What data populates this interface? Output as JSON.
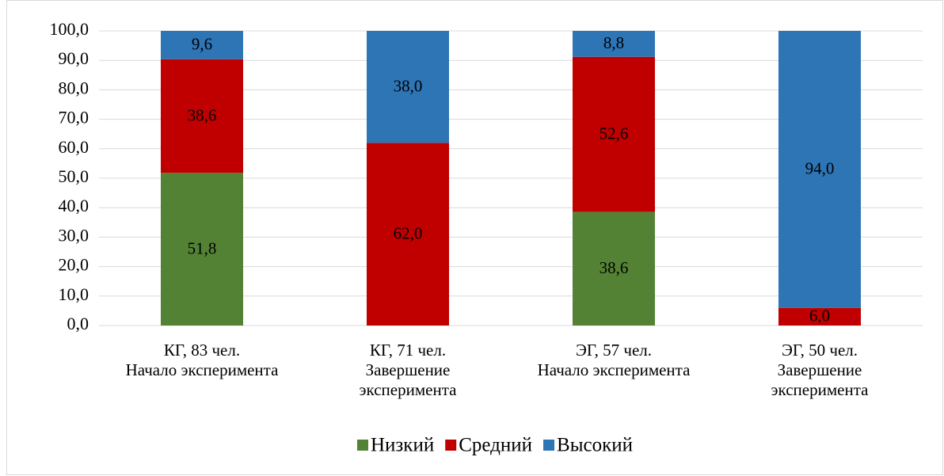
{
  "chart_data": {
    "type": "stacked_bar",
    "categories": [
      "КГ, 83 чел.\nНачало эксперимента",
      "КГ, 71 чел.\nЗавершение\nэксперимента",
      "ЭГ, 57 чел.\nНачало эксперимента",
      "ЭГ, 50 чел.\nЗавершение\nэксперимента"
    ],
    "series": [
      {
        "name": "Низкий",
        "color": "#548235",
        "values": [
          51.8,
          0,
          38.6,
          0
        ],
        "value_labels": [
          "51,8",
          null,
          "38,6",
          null
        ]
      },
      {
        "name": "Средний",
        "color": "#c00000",
        "values": [
          38.6,
          62.0,
          52.6,
          6.0
        ],
        "value_labels": [
          "38,6",
          "62,0",
          "52,6",
          "6,0"
        ]
      },
      {
        "name": "Высокий",
        "color": "#2e75b6",
        "values": [
          9.6,
          38.0,
          8.8,
          94.0
        ],
        "value_labels": [
          "9,6",
          "38,0",
          "8,8",
          "94,0"
        ]
      }
    ],
    "ylim": [
      0,
      100
    ],
    "yticks": [
      {
        "value": 0,
        "label": "0,0"
      },
      {
        "value": 10,
        "label": "10,0"
      },
      {
        "value": 20,
        "label": "20,0"
      },
      {
        "value": 30,
        "label": "30,0"
      },
      {
        "value": 40,
        "label": "40,0"
      },
      {
        "value": 50,
        "label": "50,0"
      },
      {
        "value": 60,
        "label": "60,0"
      },
      {
        "value": 70,
        "label": "70,0"
      },
      {
        "value": 80,
        "label": "80,0"
      },
      {
        "value": 90,
        "label": "90,0"
      },
      {
        "value": 100,
        "label": "100,0"
      }
    ],
    "grid": true,
    "legend": "bottom"
  }
}
